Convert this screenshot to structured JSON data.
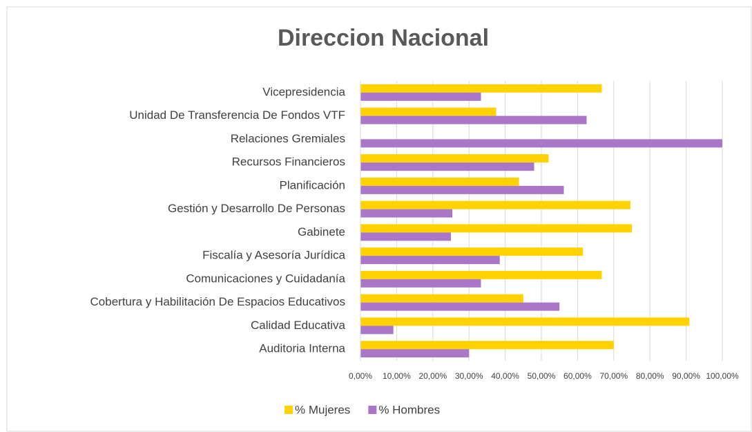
{
  "chart_data": {
    "type": "hbar",
    "title": "Direccion Nacional",
    "categories": [
      "Auditoria Interna",
      "Calidad Educativa",
      "Cobertura y Habilitación De Espacios Educativos",
      "Comunicaciones y Cuidadanía",
      "Fiscalía y Asesoría Jurídica",
      "Gabinete",
      "Gestión y Desarrollo De Personas",
      "Planificación",
      "Recursos Financieros",
      "Relaciones Gremiales",
      "Unidad De Transferencia De Fondos VTF",
      "Vicepresidencia"
    ],
    "series": [
      {
        "name": "% Mujeres",
        "color": "#ffd200",
        "values": [
          70,
          90.9,
          45,
          66.7,
          61.5,
          75,
          74.6,
          43.8,
          52,
          0,
          37.5,
          66.7
        ]
      },
      {
        "name": "% Hombres",
        "color": "#aa77c8",
        "values": [
          30,
          9.1,
          55,
          33.3,
          38.5,
          25,
          25.4,
          56.2,
          48,
          100,
          62.5,
          33.3
        ]
      }
    ],
    "xlim": [
      0,
      100
    ],
    "xticks": [
      {
        "value": 0,
        "label": "0,00%"
      },
      {
        "value": 10,
        "label": "10,00%"
      },
      {
        "value": 20,
        "label": "20,00%"
      },
      {
        "value": 30,
        "label": "30,00%"
      },
      {
        "value": 40,
        "label": "40,00%"
      },
      {
        "value": 50,
        "label": "50,00%"
      },
      {
        "value": 60,
        "label": "60,00%"
      },
      {
        "value": 70,
        "label": "70,00%"
      },
      {
        "value": 80,
        "label": "80,00%"
      },
      {
        "value": 90,
        "label": "90,00%"
      },
      {
        "value": 100,
        "label": "100,00%"
      }
    ],
    "grid": true,
    "legend": "bottom"
  }
}
